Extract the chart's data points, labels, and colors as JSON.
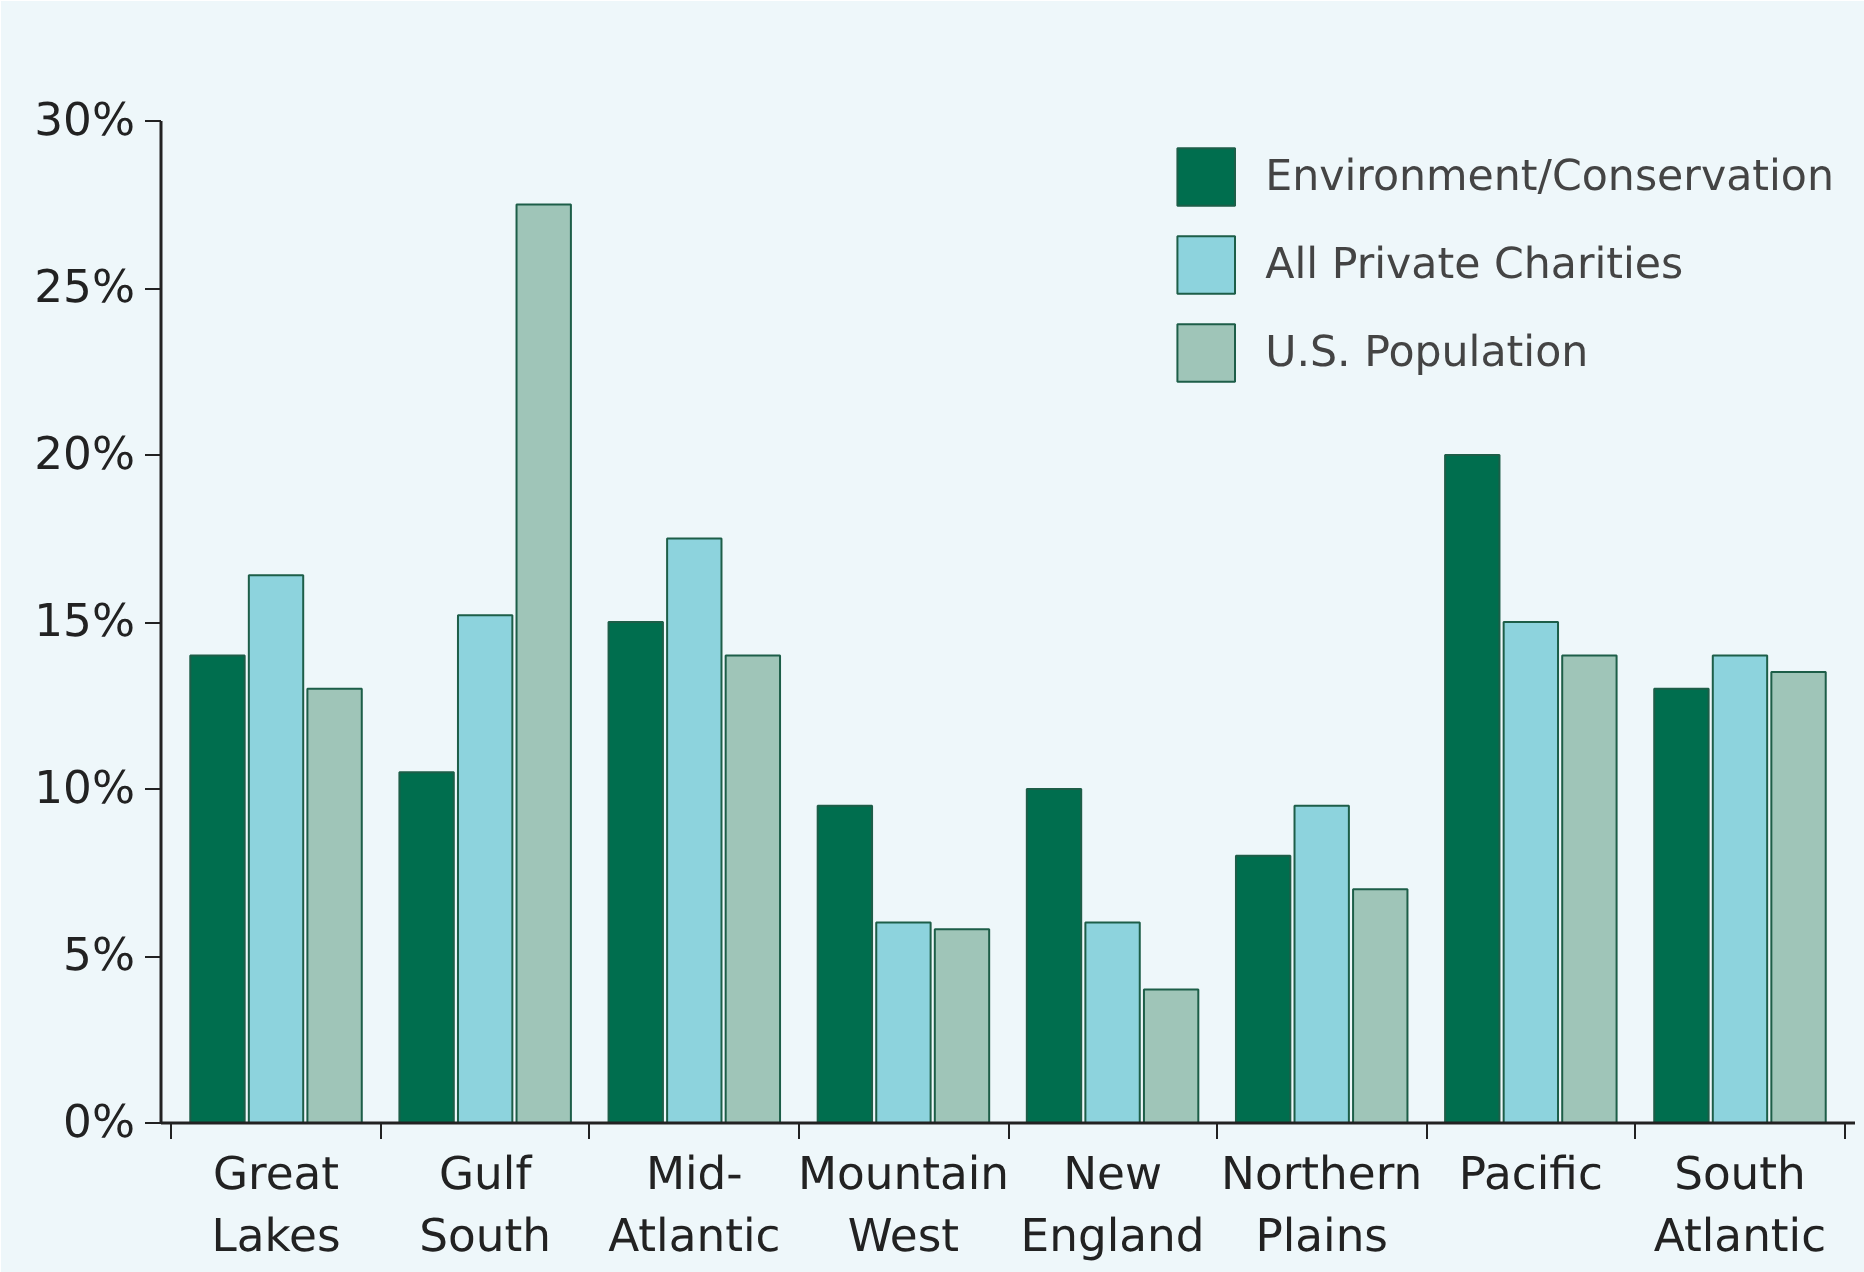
{
  "chart_data": {
    "type": "bar",
    "categories": [
      "Great Lakes",
      "Gulf South",
      "Mid-Atlantic",
      "Mountain West",
      "New England",
      "Northern Plains",
      "Pacific",
      "South Atlantic"
    ],
    "series": [
      {
        "name": "Environment/Conservation",
        "color": "#006e4e",
        "values": [
          14,
          10.5,
          15,
          9.5,
          10,
          8,
          20,
          13
        ]
      },
      {
        "name": "All Private Charities",
        "color": "#8dd3dd",
        "values": [
          16.4,
          15.2,
          17.5,
          6,
          6,
          9.5,
          15,
          14
        ]
      },
      {
        "name": "U.S. Population",
        "color": "#9fc5b8",
        "values": [
          13,
          27.5,
          14,
          5.8,
          4,
          7,
          14,
          13.5
        ]
      }
    ],
    "ylim": [
      0,
      30
    ],
    "yticks": [
      {
        "value": 0,
        "label": "0%"
      },
      {
        "value": 5,
        "label": "5%"
      },
      {
        "value": 10,
        "label": "10%"
      },
      {
        "value": 15,
        "label": "15%"
      },
      {
        "value": 20,
        "label": "20%"
      },
      {
        "value": 25,
        "label": "25%"
      },
      {
        "value": 30,
        "label": "30%"
      }
    ],
    "grid": false,
    "legend": "top right"
  }
}
